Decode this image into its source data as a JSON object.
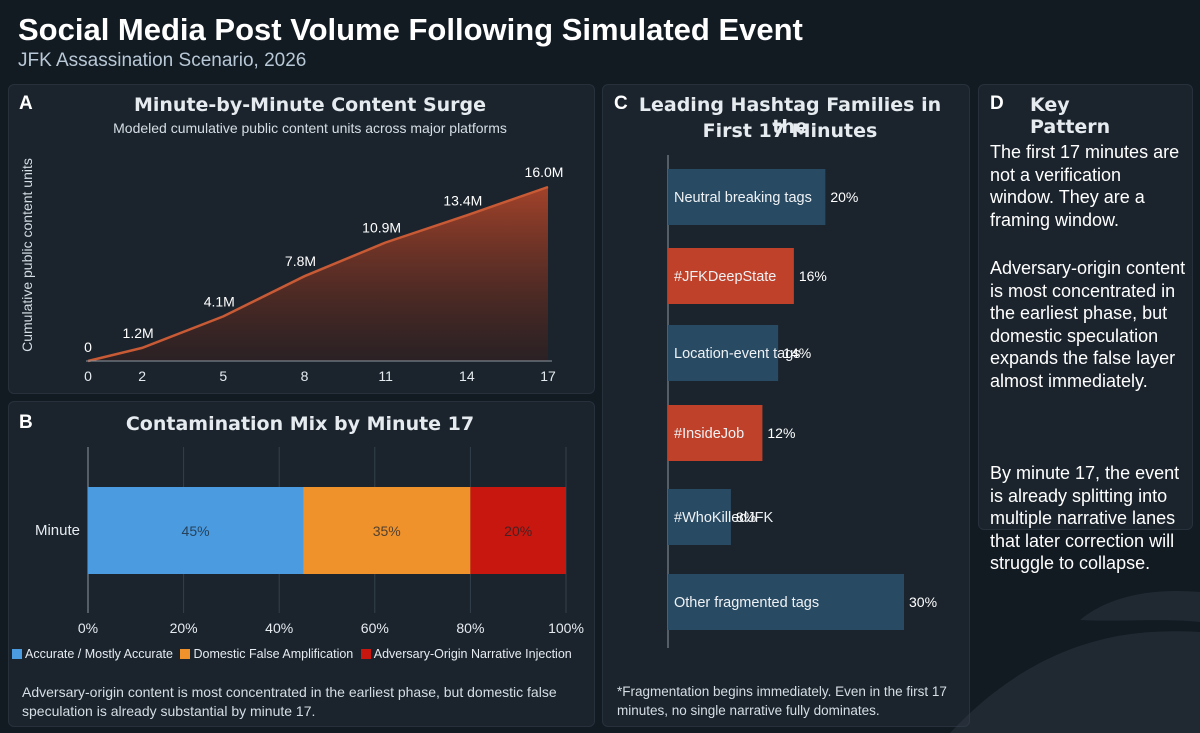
{
  "header": {
    "title": "Social Media Post Volume Following Simulated Event",
    "subtitle": "JFK Assassination Scenario, 2026"
  },
  "panels": {
    "a": {
      "label": "A",
      "title": "Minute-by-Minute Content Surge",
      "subtitle": "Modeled cumulative public content units across major platforms"
    },
    "b": {
      "label": "B",
      "title": "Contamination Mix by Minute 17",
      "footnote": "Adversary-origin content is most concentrated in the earliest phase, but domestic false speculation is already substantial by minute 17."
    },
    "c": {
      "label": "C",
      "title_line1": "Leading Hashtag Families in the",
      "title_line2": "First 17 Minutes",
      "footnote": "*Fragmentation begins immediately. Even in the first 17 minutes, no single narrative fully dominates."
    },
    "d": {
      "label": "D",
      "title": "Key Pattern",
      "paragraphs": [
        "The first 17 minutes are not a verification window. They are a framing window.",
        "Adversary-origin content is most concentrated in the earliest phase, but domestic speculation expands the false layer almost immediately.",
        "By minute 17, the event is already splitting into multiple narrative lanes that later correction will struggle to collapse."
      ]
    }
  },
  "colors": {
    "area_line": "#c85a35",
    "accurate": "#4a9be0",
    "domestic": "#f0922c",
    "adversary": "#c8170e",
    "hashtag_neutral": "#294a63",
    "hashtag_red": "#c0412a"
  },
  "chart_data": [
    {
      "type": "area",
      "title": "Minute-by-Minute Content Surge",
      "subtitle": "Modeled cumulative public content units across major platforms",
      "xlabel": "",
      "ylabel": "Cumulative public content units",
      "x": [
        0,
        2,
        5,
        8,
        11,
        14,
        17
      ],
      "values": [
        0,
        1.2,
        4.1,
        7.8,
        10.9,
        13.4,
        16.0
      ],
      "labels": [
        "0",
        "1.2M",
        "4.1M",
        "7.8M",
        "10.9M",
        "13.4M",
        "16.0M"
      ],
      "xlim": [
        0,
        17
      ],
      "ylim": [
        0,
        16.0
      ]
    },
    {
      "type": "bar",
      "orientation": "horizontal-stacked",
      "title": "Contamination Mix by Minute 17",
      "categories": [
        "Minute"
      ],
      "series": [
        {
          "name": "Accurate / Mostly Accurate",
          "values": [
            45
          ],
          "label": "45%",
          "color": "#4a9be0"
        },
        {
          "name": "Domestic False Amplification",
          "values": [
            35
          ],
          "label": "35%",
          "color": "#f0922c"
        },
        {
          "name": "Adversary-Origin Narrative Injection",
          "values": [
            20
          ],
          "label": "20%",
          "color": "#c8170e"
        }
      ],
      "ticks": [
        "0%",
        "20%",
        "40%",
        "60%",
        "80%",
        "100%"
      ],
      "xlim": [
        0,
        100
      ],
      "grid": true,
      "legend": "bottom"
    },
    {
      "type": "bar",
      "orientation": "horizontal",
      "title": "Leading Hashtag Families in the First 17 Minutes",
      "categories": [
        "Neutral breaking tags",
        "#JFKDeepState",
        "Location-event tags",
        "#InsideJob",
        "#WhoKilledJFK",
        "Other fragmented tags"
      ],
      "values": [
        20,
        16,
        14,
        12,
        8,
        30
      ],
      "value_labels": [
        "20%",
        "16%",
        "14%",
        "12%",
        "8%",
        "30%"
      ],
      "highlight": [
        false,
        true,
        false,
        true,
        false,
        false
      ],
      "xlim": [
        0,
        30
      ]
    }
  ]
}
